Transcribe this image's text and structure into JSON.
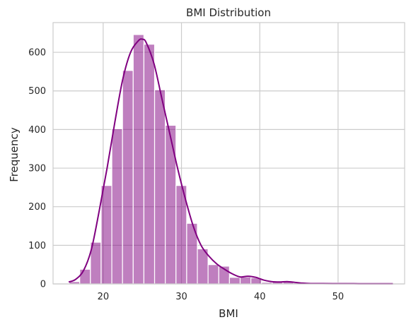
{
  "chart_data": {
    "type": "bar",
    "title": "BMI Distribution",
    "xlabel": "BMI",
    "ylabel": "Frequency",
    "xlim": [
      13.6,
      58.5
    ],
    "ylim": [
      0,
      677
    ],
    "xticks": [
      20,
      30,
      40,
      50
    ],
    "yticks": [
      0,
      100,
      200,
      300,
      400,
      500,
      600
    ],
    "grid": true,
    "legend": "none",
    "bar_color": "#800080",
    "kde_color": "#800080",
    "bins": {
      "start": 15.64,
      "width": 1.366,
      "counts": [
        6,
        38,
        108,
        255,
        402,
        553,
        646,
        621,
        503,
        411,
        255,
        157,
        91,
        50,
        46,
        17,
        18,
        16,
        4,
        6,
        6,
        3,
        1,
        1,
        1,
        3,
        1,
        1,
        1,
        3
      ]
    },
    "kde": {
      "x": [
        15.6,
        16.5,
        17.5,
        18.5,
        19.5,
        20.5,
        21.5,
        22.5,
        23.5,
        24.5,
        25.0,
        25.5,
        26.5,
        27.5,
        28.5,
        29.5,
        30.5,
        31.5,
        32.5,
        33.5,
        34.5,
        35.5,
        36.5,
        37.5,
        38.5,
        39.5,
        40.5,
        41.5,
        42.5,
        43.5,
        44.5,
        45.5,
        46.5,
        48,
        50,
        52,
        54,
        57
      ],
      "y": [
        5,
        12,
        35,
        90,
        190,
        300,
        420,
        530,
        600,
        630,
        634,
        625,
        570,
        480,
        390,
        300,
        220,
        150,
        100,
        72,
        52,
        38,
        26,
        18,
        20,
        17,
        10,
        6,
        5,
        6,
        4,
        2,
        1,
        1,
        0.6,
        0.6,
        0.4,
        0.4
      ]
    }
  }
}
